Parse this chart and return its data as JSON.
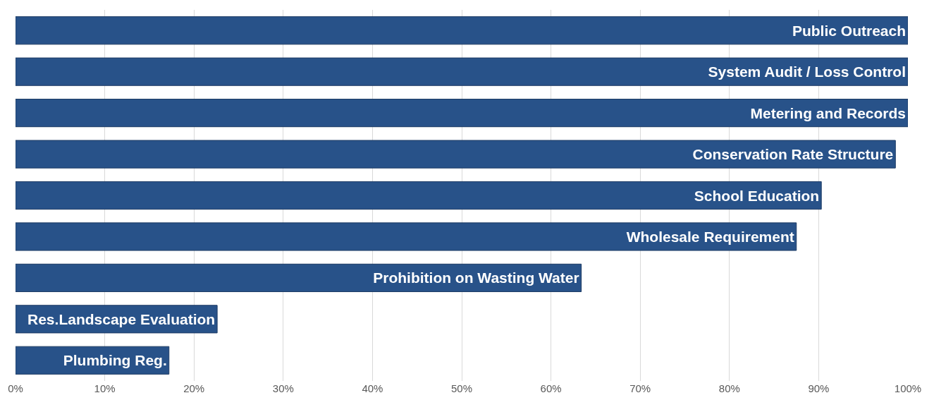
{
  "chart_data": {
    "type": "bar",
    "orientation": "horizontal",
    "categories": [
      "Public Outreach",
      "System Audit / Loss Control",
      "Metering and Records",
      "Conservation Rate Structure",
      "School Education",
      "Wholesale Requirement",
      "Prohibition on Wasting Water",
      "Res.Landscape Evaluation",
      "Plumbing Reg."
    ],
    "values": [
      100,
      100,
      100,
      98.6,
      90.3,
      87.5,
      63.4,
      22.6,
      17.2
    ],
    "color": "#285289",
    "xlim": [
      0,
      100
    ],
    "xticks": [
      {
        "value": 0,
        "label": "0%"
      },
      {
        "value": 10,
        "label": "10%"
      },
      {
        "value": 20,
        "label": "20%"
      },
      {
        "value": 30,
        "label": "30%"
      },
      {
        "value": 40,
        "label": "40%"
      },
      {
        "value": 50,
        "label": "50%"
      },
      {
        "value": 60,
        "label": "60%"
      },
      {
        "value": 70,
        "label": "70%"
      },
      {
        "value": 80,
        "label": "80%"
      },
      {
        "value": 90,
        "label": "90%"
      },
      {
        "value": 100,
        "label": "100%"
      }
    ],
    "tick_labels": "x",
    "grid": "x"
  }
}
